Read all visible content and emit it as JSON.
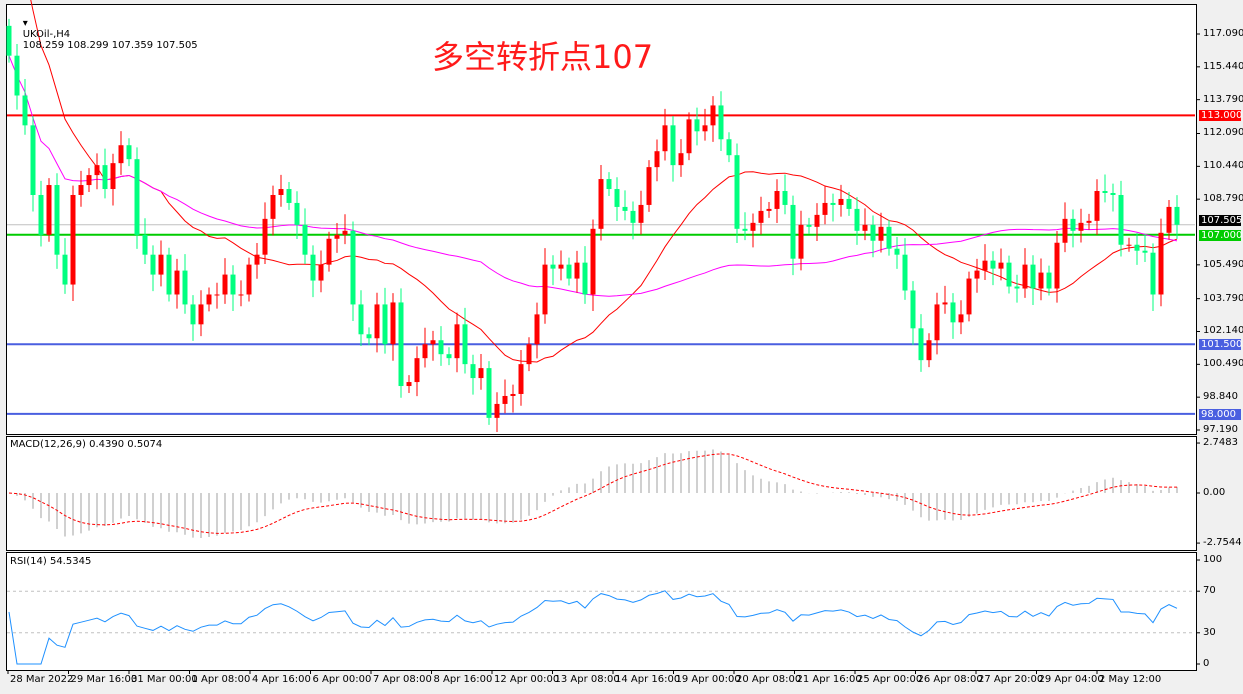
{
  "chart": {
    "symbol_header": "UKOil-,H4",
    "ohlc_readout": "108.259 108.299 107.359 107.505",
    "annotation": "多空转折点107",
    "colors": {
      "bull": "#ff0000",
      "bear": "#00ff7f",
      "ma_fast": "#ff0000",
      "ma_slow": "#ff00ff",
      "rsi": "#1e90ff",
      "macd_signal": "#ff0000",
      "macd_hist": "#a0a0a0"
    },
    "price_ticks": [
      "117.090",
      "115.440",
      "113.790",
      "112.090",
      "110.440",
      "108.790",
      "105.490",
      "103.790",
      "102.140",
      "100.490",
      "98.840",
      "97.190"
    ],
    "levels": [
      {
        "price": 113.0,
        "label": "113.000",
        "color": "#ff0000"
      },
      {
        "price": 107.0,
        "label": "107.000",
        "color": "#00cc00"
      },
      {
        "price": 101.5,
        "label": "101.500",
        "color": "#4a5fe0"
      },
      {
        "price": 98.0,
        "label": "98.000",
        "color": "#4a5fe0"
      }
    ],
    "current_price": {
      "price": 107.505,
      "label": "107.505"
    },
    "closes": [
      116,
      114,
      112.5,
      109,
      107,
      109.5,
      106,
      104.5,
      109,
      109.5,
      110,
      110.5,
      109.3,
      110.6,
      111.5,
      110.8,
      107,
      106,
      105,
      106,
      104,
      105.2,
      103.5,
      102.5,
      103.5,
      104,
      104,
      105,
      104,
      104,
      105.5,
      106,
      107.8,
      109,
      109.3,
      108.6,
      107.5,
      106,
      104.7,
      105.5,
      106.8,
      107,
      107.2,
      103.5,
      102,
      101.8,
      103.5,
      101.5,
      103.6,
      99.4,
      99.6,
      100.8,
      101.5,
      101.7,
      101,
      100.8,
      102.5,
      100.5,
      99.8,
      100.3,
      97.8,
      98.5,
      98.9,
      99,
      100.5,
      101.5,
      103,
      105.5,
      105.3,
      105.5,
      104.8,
      105.6,
      104,
      107.3,
      109.8,
      109.3,
      108.4,
      108.2,
      107.6,
      108.5,
      110.4,
      111.2,
      112.5,
      110.5,
      111.1,
      112.8,
      112.2,
      112.5,
      113.5,
      111.8,
      111,
      107.3,
      107.2,
      107.6,
      108.2,
      108.3,
      109.2,
      108.5,
      105.8,
      107.5,
      107.4,
      108,
      108.6,
      108.5,
      108.8,
      108.3,
      107.2,
      107.5,
      106.7,
      107.4,
      106.3,
      106,
      104.2,
      102.3,
      100.7,
      101.7,
      103.5,
      103.6,
      102.6,
      103,
      104.8,
      105.2,
      105.7,
      105.3,
      105.6,
      104.4,
      104.3,
      105.5,
      104.3,
      105.1,
      104.3,
      106.6,
      107.8,
      107.2,
      107.6,
      107.7,
      109.2,
      109.1,
      109,
      106.5,
      106.5,
      106.2,
      106.1,
      104,
      107.1,
      108.4,
      107.505
    ]
  },
  "macd": {
    "header": "MACD(12,26,9) 0.4390 0.5074",
    "ticks": [
      "2.7483",
      "0.00",
      "-2.7544"
    ]
  },
  "rsi": {
    "header": "RSI(14) 54.5345",
    "ticks": [
      "100",
      "70",
      "30",
      "0"
    ]
  },
  "time_axis": [
    "28 Mar 2022",
    "29 Mar 16:00",
    "31 Mar 00:00",
    "1 Apr 08:00",
    "4 Apr 16:00",
    "6 Apr 00:00",
    "7 Apr 08:00",
    "8 Apr 16:00",
    "12 Apr 00:00",
    "13 Apr 08:00",
    "14 Apr 16:00",
    "19 Apr 00:00",
    "20 Apr 08:00",
    "21 Apr 16:00",
    "25 Apr 00:00",
    "26 Apr 08:00",
    "27 Apr 20:00",
    "29 Apr 04:00",
    "2 May 12:00"
  ]
}
